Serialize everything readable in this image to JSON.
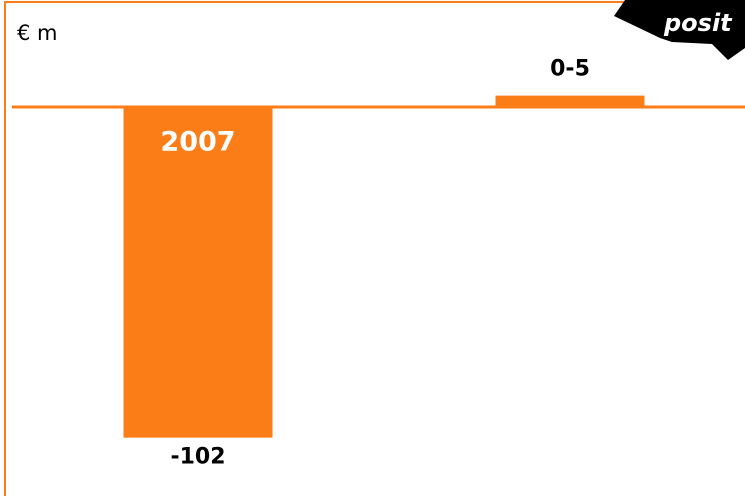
{
  "chart_data": {
    "type": "bar",
    "unit_label": "€ m",
    "annotation": "posit",
    "categories": [
      "2007",
      null
    ],
    "values": [
      -102,
      3.5
    ],
    "value_labels": [
      "-102",
      "0-5"
    ],
    "color": "#fb7d18",
    "ylim": [
      -120,
      33
    ]
  }
}
